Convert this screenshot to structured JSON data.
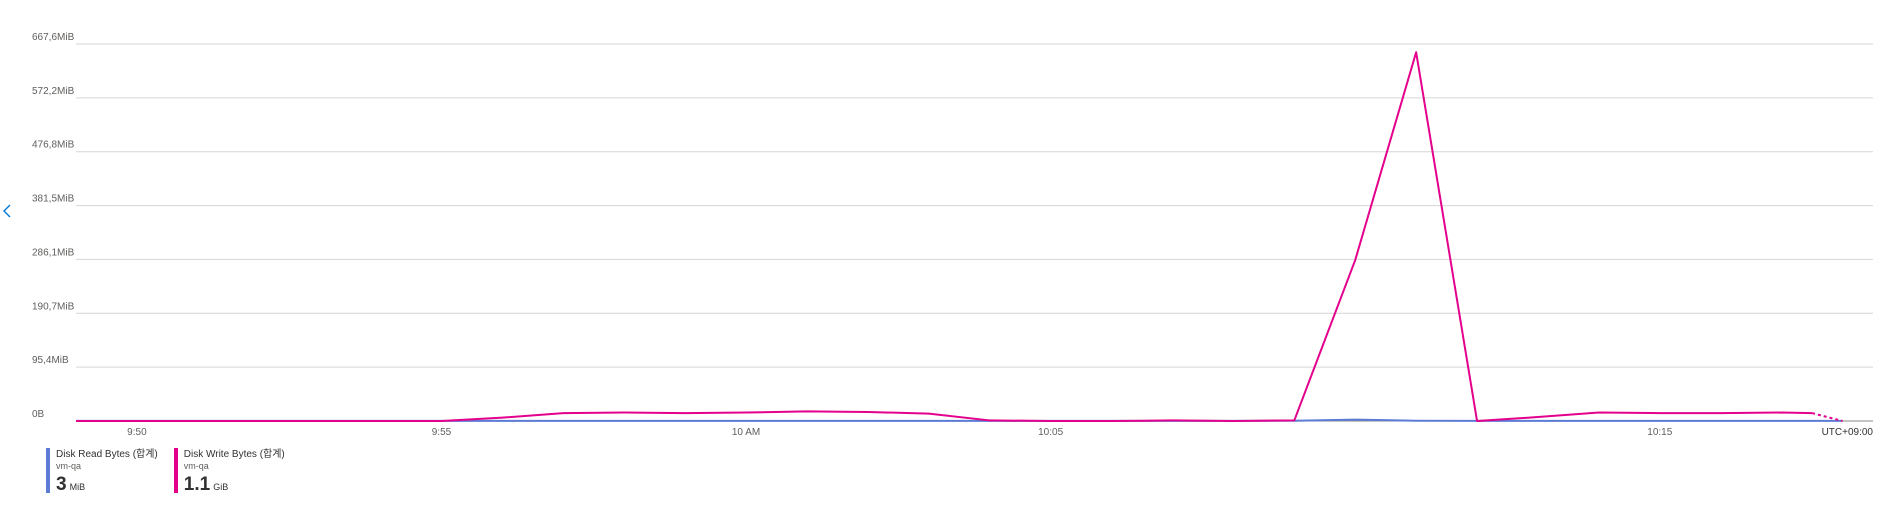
{
  "chart_data": {
    "type": "line",
    "yticks": [
      "667,6MiB",
      "572,2MiB",
      "476,8MiB",
      "381,5MiB",
      "286,1MiB",
      "190,7MiB",
      "95,4MiB",
      "0B"
    ],
    "ylim": [
      0,
      667.6
    ],
    "ytick_values": [
      667.6,
      572.2,
      476.8,
      381.5,
      286.1,
      190.7,
      95.4,
      0
    ],
    "xtick_labels": [
      "9:50",
      "9:55",
      "10 AM",
      "10:05",
      "10:15"
    ],
    "xtick_values": [
      2,
      7,
      12,
      17,
      27
    ],
    "xlim": [
      1,
      30.5
    ],
    "timezone": "UTC+09:00",
    "grid": true,
    "series": [
      {
        "name": "Disk Read Bytes (합계)",
        "resource": "vm-qa",
        "color": "#5b7bd5",
        "x": [
          1,
          2,
          3,
          4,
          5,
          6,
          7,
          8,
          9,
          10,
          11,
          12,
          13,
          14,
          15,
          16,
          17,
          18,
          19,
          20,
          21,
          22,
          23,
          24,
          25,
          26,
          27,
          28,
          29,
          30
        ],
        "values": [
          0.3,
          0.3,
          0.3,
          0.3,
          0.3,
          0.3,
          0.3,
          0.3,
          0.3,
          0.3,
          0.3,
          0.3,
          0.3,
          0.3,
          0.3,
          0.3,
          0.3,
          0.3,
          0.3,
          0.3,
          0.5,
          2.5,
          0.5,
          0.3,
          0.3,
          0.3,
          0.3,
          0.3,
          0.3,
          0.3
        ],
        "dashed_from_index": 29
      },
      {
        "name": "Disk Write Bytes (합계)",
        "resource": "vm-qa",
        "color": "#e3008c",
        "x": [
          1,
          2,
          3,
          4,
          5,
          6,
          7,
          8,
          9,
          10,
          11,
          12,
          13,
          14,
          15,
          16,
          17,
          18,
          19,
          20,
          21,
          22,
          23,
          24,
          25,
          26,
          27,
          28,
          29,
          29.5,
          30
        ],
        "values": [
          0,
          0,
          0,
          0,
          0,
          0,
          0,
          6,
          14,
          15,
          14,
          15,
          17,
          16,
          13,
          1,
          0,
          0,
          1,
          0,
          1,
          285,
          653,
          0,
          7,
          15,
          14,
          14,
          15,
          14,
          0
        ],
        "dashed_from_index": 29
      }
    ]
  },
  "legend": [
    {
      "name": "Disk Read Bytes (합계)",
      "resource": "vm-qa",
      "value": "3",
      "unit": "MiB",
      "color": "#5b7bd5"
    },
    {
      "name": "Disk Write Bytes (합계)",
      "resource": "vm-qa",
      "value": "1.1",
      "unit": "GiB",
      "color": "#e3008c"
    }
  ],
  "nav": {
    "prev_icon": "chevron-left-icon"
  }
}
